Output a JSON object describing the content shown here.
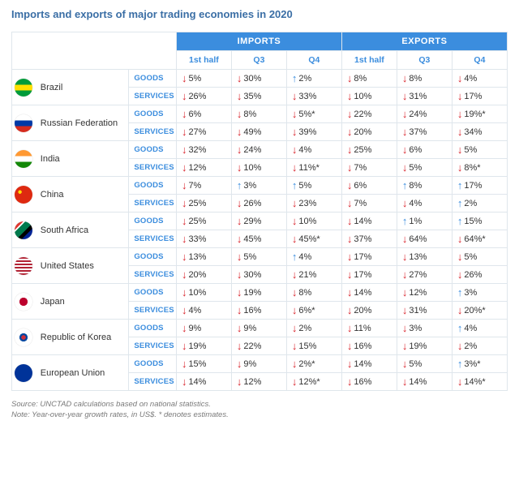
{
  "title": "Imports and exports of major trading economies in 2020",
  "groups": {
    "imports": "IMPORTS",
    "exports": "EXPORTS"
  },
  "periods": {
    "h1": "1st half",
    "q3": "Q3",
    "q4": "Q4"
  },
  "row_types": {
    "goods": "GOODS",
    "services": "SERVICES"
  },
  "arrows": {
    "down": "↓",
    "up": "↑"
  },
  "colors": {
    "header_blue": "#3b8dde",
    "text_blue": "#3b8dde",
    "arrow_down": "#d9262e",
    "arrow_up": "#3b8dde",
    "border": "#dfe6ec"
  },
  "flags": {
    "brazil": "linear-gradient(#009b3a 0 35%, #fedf00 35% 65%, #009b3a 65% 100%)",
    "russia": "linear-gradient(#fff 0 33%, #0039a6 33% 66%, #d52b1e 66% 100%)",
    "india": "linear-gradient(#ff9933 0 33%, #ffffff 33% 66%, #138808 66% 100%)",
    "china": "radial-gradient(circle at 30% 35%, #ffde00 0 10%, #de2910 11% 100%)",
    "south_africa": "linear-gradient(135deg,#de3831 0 25%,#fff 25% 30%,#007a4d 30% 55%,#000 55% 70%,#002395 70% 100%)",
    "usa": "repeating-linear-gradient(#b22234 0 2px,#fff 2px 4px)",
    "japan": "radial-gradient(circle at 50% 50%, #bc002d 0 32%, #fff 33% 100%)",
    "korea": "radial-gradient(circle at 50% 50%, #cd2e3a 0 18%, #0047a0 18% 32%, #fff 33% 100%)",
    "eu": "radial-gradient(circle at 50% 50%, #003399 0 100%)"
  },
  "countries": [
    {
      "id": "brazil",
      "name": "Brazil",
      "flag": "brazil",
      "goods": {
        "imp": [
          [
            "down",
            "5%"
          ],
          [
            "down",
            "30%"
          ],
          [
            "up",
            "2%"
          ]
        ],
        "exp": [
          [
            "down",
            "8%"
          ],
          [
            "down",
            "8%"
          ],
          [
            "down",
            "4%"
          ]
        ]
      },
      "services": {
        "imp": [
          [
            "down",
            "26%"
          ],
          [
            "down",
            "35%"
          ],
          [
            "down",
            "33%"
          ]
        ],
        "exp": [
          [
            "down",
            "10%"
          ],
          [
            "down",
            "31%"
          ],
          [
            "down",
            "17%"
          ]
        ]
      }
    },
    {
      "id": "russia",
      "name": "Russian Federation",
      "flag": "russia",
      "goods": {
        "imp": [
          [
            "down",
            "6%"
          ],
          [
            "down",
            "8%"
          ],
          [
            "down",
            "5%*"
          ]
        ],
        "exp": [
          [
            "down",
            "22%"
          ],
          [
            "down",
            "24%"
          ],
          [
            "down",
            "19%*"
          ]
        ]
      },
      "services": {
        "imp": [
          [
            "down",
            "27%"
          ],
          [
            "down",
            "49%"
          ],
          [
            "down",
            "39%"
          ]
        ],
        "exp": [
          [
            "down",
            "20%"
          ],
          [
            "down",
            "37%"
          ],
          [
            "down",
            "34%"
          ]
        ]
      }
    },
    {
      "id": "india",
      "name": "India",
      "flag": "india",
      "goods": {
        "imp": [
          [
            "down",
            "32%"
          ],
          [
            "down",
            "24%"
          ],
          [
            "down",
            "4%"
          ]
        ],
        "exp": [
          [
            "down",
            "25%"
          ],
          [
            "down",
            "6%"
          ],
          [
            "down",
            "5%"
          ]
        ]
      },
      "services": {
        "imp": [
          [
            "down",
            "12%"
          ],
          [
            "down",
            "10%"
          ],
          [
            "down",
            "11%*"
          ]
        ],
        "exp": [
          [
            "down",
            "7%"
          ],
          [
            "down",
            "5%"
          ],
          [
            "down",
            "8%*"
          ]
        ]
      }
    },
    {
      "id": "china",
      "name": "China",
      "flag": "china",
      "goods": {
        "imp": [
          [
            "down",
            "7%"
          ],
          [
            "up",
            "3%"
          ],
          [
            "up",
            "5%"
          ]
        ],
        "exp": [
          [
            "down",
            "6%"
          ],
          [
            "up",
            "8%"
          ],
          [
            "up",
            "17%"
          ]
        ]
      },
      "services": {
        "imp": [
          [
            "down",
            "25%"
          ],
          [
            "down",
            "26%"
          ],
          [
            "down",
            "23%"
          ]
        ],
        "exp": [
          [
            "down",
            "7%"
          ],
          [
            "down",
            "4%"
          ],
          [
            "up",
            "2%"
          ]
        ]
      }
    },
    {
      "id": "south_africa",
      "name": "South Africa",
      "flag": "south_africa",
      "goods": {
        "imp": [
          [
            "down",
            "25%"
          ],
          [
            "down",
            "29%"
          ],
          [
            "down",
            "10%"
          ]
        ],
        "exp": [
          [
            "down",
            "14%"
          ],
          [
            "up",
            "1%"
          ],
          [
            "up",
            "15%"
          ]
        ]
      },
      "services": {
        "imp": [
          [
            "down",
            "33%"
          ],
          [
            "down",
            "45%"
          ],
          [
            "down",
            "45%*"
          ]
        ],
        "exp": [
          [
            "down",
            "37%"
          ],
          [
            "down",
            "64%"
          ],
          [
            "down",
            "64%*"
          ]
        ]
      }
    },
    {
      "id": "usa",
      "name": "United States",
      "flag": "usa",
      "goods": {
        "imp": [
          [
            "down",
            "13%"
          ],
          [
            "down",
            "5%"
          ],
          [
            "up",
            "4%"
          ]
        ],
        "exp": [
          [
            "down",
            "17%"
          ],
          [
            "down",
            "13%"
          ],
          [
            "down",
            "5%"
          ]
        ]
      },
      "services": {
        "imp": [
          [
            "down",
            "20%"
          ],
          [
            "down",
            "30%"
          ],
          [
            "down",
            "21%"
          ]
        ],
        "exp": [
          [
            "down",
            "17%"
          ],
          [
            "down",
            "27%"
          ],
          [
            "down",
            "26%"
          ]
        ]
      }
    },
    {
      "id": "japan",
      "name": "Japan",
      "flag": "japan",
      "goods": {
        "imp": [
          [
            "down",
            "10%"
          ],
          [
            "down",
            "19%"
          ],
          [
            "down",
            "8%"
          ]
        ],
        "exp": [
          [
            "down",
            "14%"
          ],
          [
            "down",
            "12%"
          ],
          [
            "up",
            "3%"
          ]
        ]
      },
      "services": {
        "imp": [
          [
            "down",
            "4%"
          ],
          [
            "down",
            "16%"
          ],
          [
            "down",
            "6%*"
          ]
        ],
        "exp": [
          [
            "down",
            "20%"
          ],
          [
            "down",
            "31%"
          ],
          [
            "down",
            "20%*"
          ]
        ]
      }
    },
    {
      "id": "korea",
      "name": "Republic of Korea",
      "flag": "korea",
      "goods": {
        "imp": [
          [
            "down",
            "9%"
          ],
          [
            "down",
            "9%"
          ],
          [
            "down",
            "2%"
          ]
        ],
        "exp": [
          [
            "down",
            "11%"
          ],
          [
            "down",
            "3%"
          ],
          [
            "up",
            "4%"
          ]
        ]
      },
      "services": {
        "imp": [
          [
            "down",
            "19%"
          ],
          [
            "down",
            "22%"
          ],
          [
            "down",
            "15%"
          ]
        ],
        "exp": [
          [
            "down",
            "16%"
          ],
          [
            "down",
            "19%"
          ],
          [
            "down",
            "2%"
          ]
        ]
      }
    },
    {
      "id": "eu",
      "name": "European Union",
      "flag": "eu",
      "goods": {
        "imp": [
          [
            "down",
            "15%"
          ],
          [
            "down",
            "9%"
          ],
          [
            "down",
            "2%*"
          ]
        ],
        "exp": [
          [
            "down",
            "14%"
          ],
          [
            "down",
            "5%"
          ],
          [
            "up",
            "3%*"
          ]
        ]
      },
      "services": {
        "imp": [
          [
            "down",
            "14%"
          ],
          [
            "down",
            "12%"
          ],
          [
            "down",
            "12%*"
          ]
        ],
        "exp": [
          [
            "down",
            "16%"
          ],
          [
            "down",
            "14%"
          ],
          [
            "down",
            "14%*"
          ]
        ]
      }
    }
  ],
  "footnote": {
    "source_label": "Source:",
    "source_text": " UNCTAD calculations based on national statistics.",
    "note_label": "Note:",
    "note_text": " Year-over-year growth rates, in US$. * denotes estimates."
  }
}
